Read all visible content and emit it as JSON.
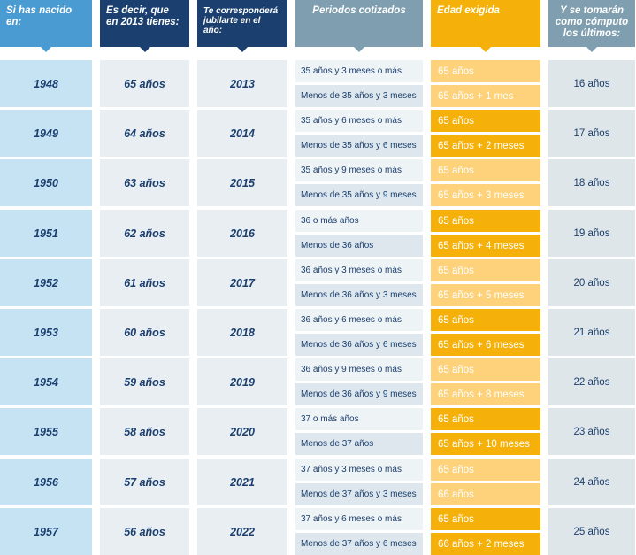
{
  "headers": {
    "birth": "Si has nacido en:",
    "age": "Es decir, que en 2013 tienes:",
    "retire_year": "Te corresponderá jubilarte en el año:",
    "periods": "Periodos cotizados",
    "required_age": "Edad exigida",
    "last_years": "Y se tomarán como cómputo los últimos:"
  },
  "rows": [
    {
      "birth": "1948",
      "age": "65 años",
      "year": "2013",
      "p1": "35 años y 3 meses o más",
      "p2": "Menos de  35 años y 3 meses",
      "e1": "65 años",
      "e2": "65 años + 1 mes",
      "last": "16 años",
      "shade": "light"
    },
    {
      "birth": "1949",
      "age": "64 años",
      "year": "2014",
      "p1": "35 años y 6 meses o más",
      "p2": "Menos de 35 años y 6 meses",
      "e1": "65 años",
      "e2": "65 años + 2 meses",
      "last": "17 años",
      "shade": "dark"
    },
    {
      "birth": "1950",
      "age": "63 años",
      "year": "2015",
      "p1": "35 años y 9 meses o más",
      "p2": "Menos de 35 años y 9 meses",
      "e1": "65 años",
      "e2": "65 años + 3 meses",
      "last": "18 años",
      "shade": "light"
    },
    {
      "birth": "1951",
      "age": "62 años",
      "year": "2016",
      "p1": "36 o más años",
      "p2": "Menos de 36 años",
      "e1": "65 años",
      "e2": "65 años + 4 meses",
      "last": "19 años",
      "shade": "dark"
    },
    {
      "birth": "1952",
      "age": "61 años",
      "year": "2017",
      "p1": "36 años y 3 meses o más",
      "p2": "Menos de  36 años y 3 meses",
      "e1": "65 años",
      "e2": "65 años + 5 meses",
      "last": "20 años",
      "shade": "light"
    },
    {
      "birth": "1953",
      "age": "60 años",
      "year": "2018",
      "p1": "36 años y 6 meses o más",
      "p2": "Menos de 36 años y 6 meses",
      "e1": "65 años",
      "e2": "65 años + 6 meses",
      "last": "21 años",
      "shade": "dark"
    },
    {
      "birth": "1954",
      "age": "59 años",
      "year": "2019",
      "p1": "36 años y 9 meses o más",
      "p2": "Menos de 36 años y 9 meses",
      "e1": "65 años",
      "e2": "65 años + 8 meses",
      "last": "22 años",
      "shade": "light"
    },
    {
      "birth": "1955",
      "age": "58 años",
      "year": "2020",
      "p1": "37 o más años",
      "p2": "Menos de 37 años",
      "e1": "65 años",
      "e2": "65 años + 10 meses",
      "last": "23 años",
      "shade": "dark"
    },
    {
      "birth": "1956",
      "age": "57 años",
      "year": "2021",
      "p1": "37 años y 3 meses o más",
      "p2": "Menos de  37 años y 3 meses",
      "e1": "65 años",
      "e2": "66 años",
      "last": "24 años",
      "shade": "light"
    },
    {
      "birth": "1957",
      "age": "56 años",
      "year": "2022",
      "p1": "37 años y 6 meses o más",
      "p2": "Menos de 37 años y 6 meses",
      "e1": "65 años",
      "e2": "66 años + 2 meses",
      "last": "25 años",
      "shade": "dark"
    }
  ]
}
